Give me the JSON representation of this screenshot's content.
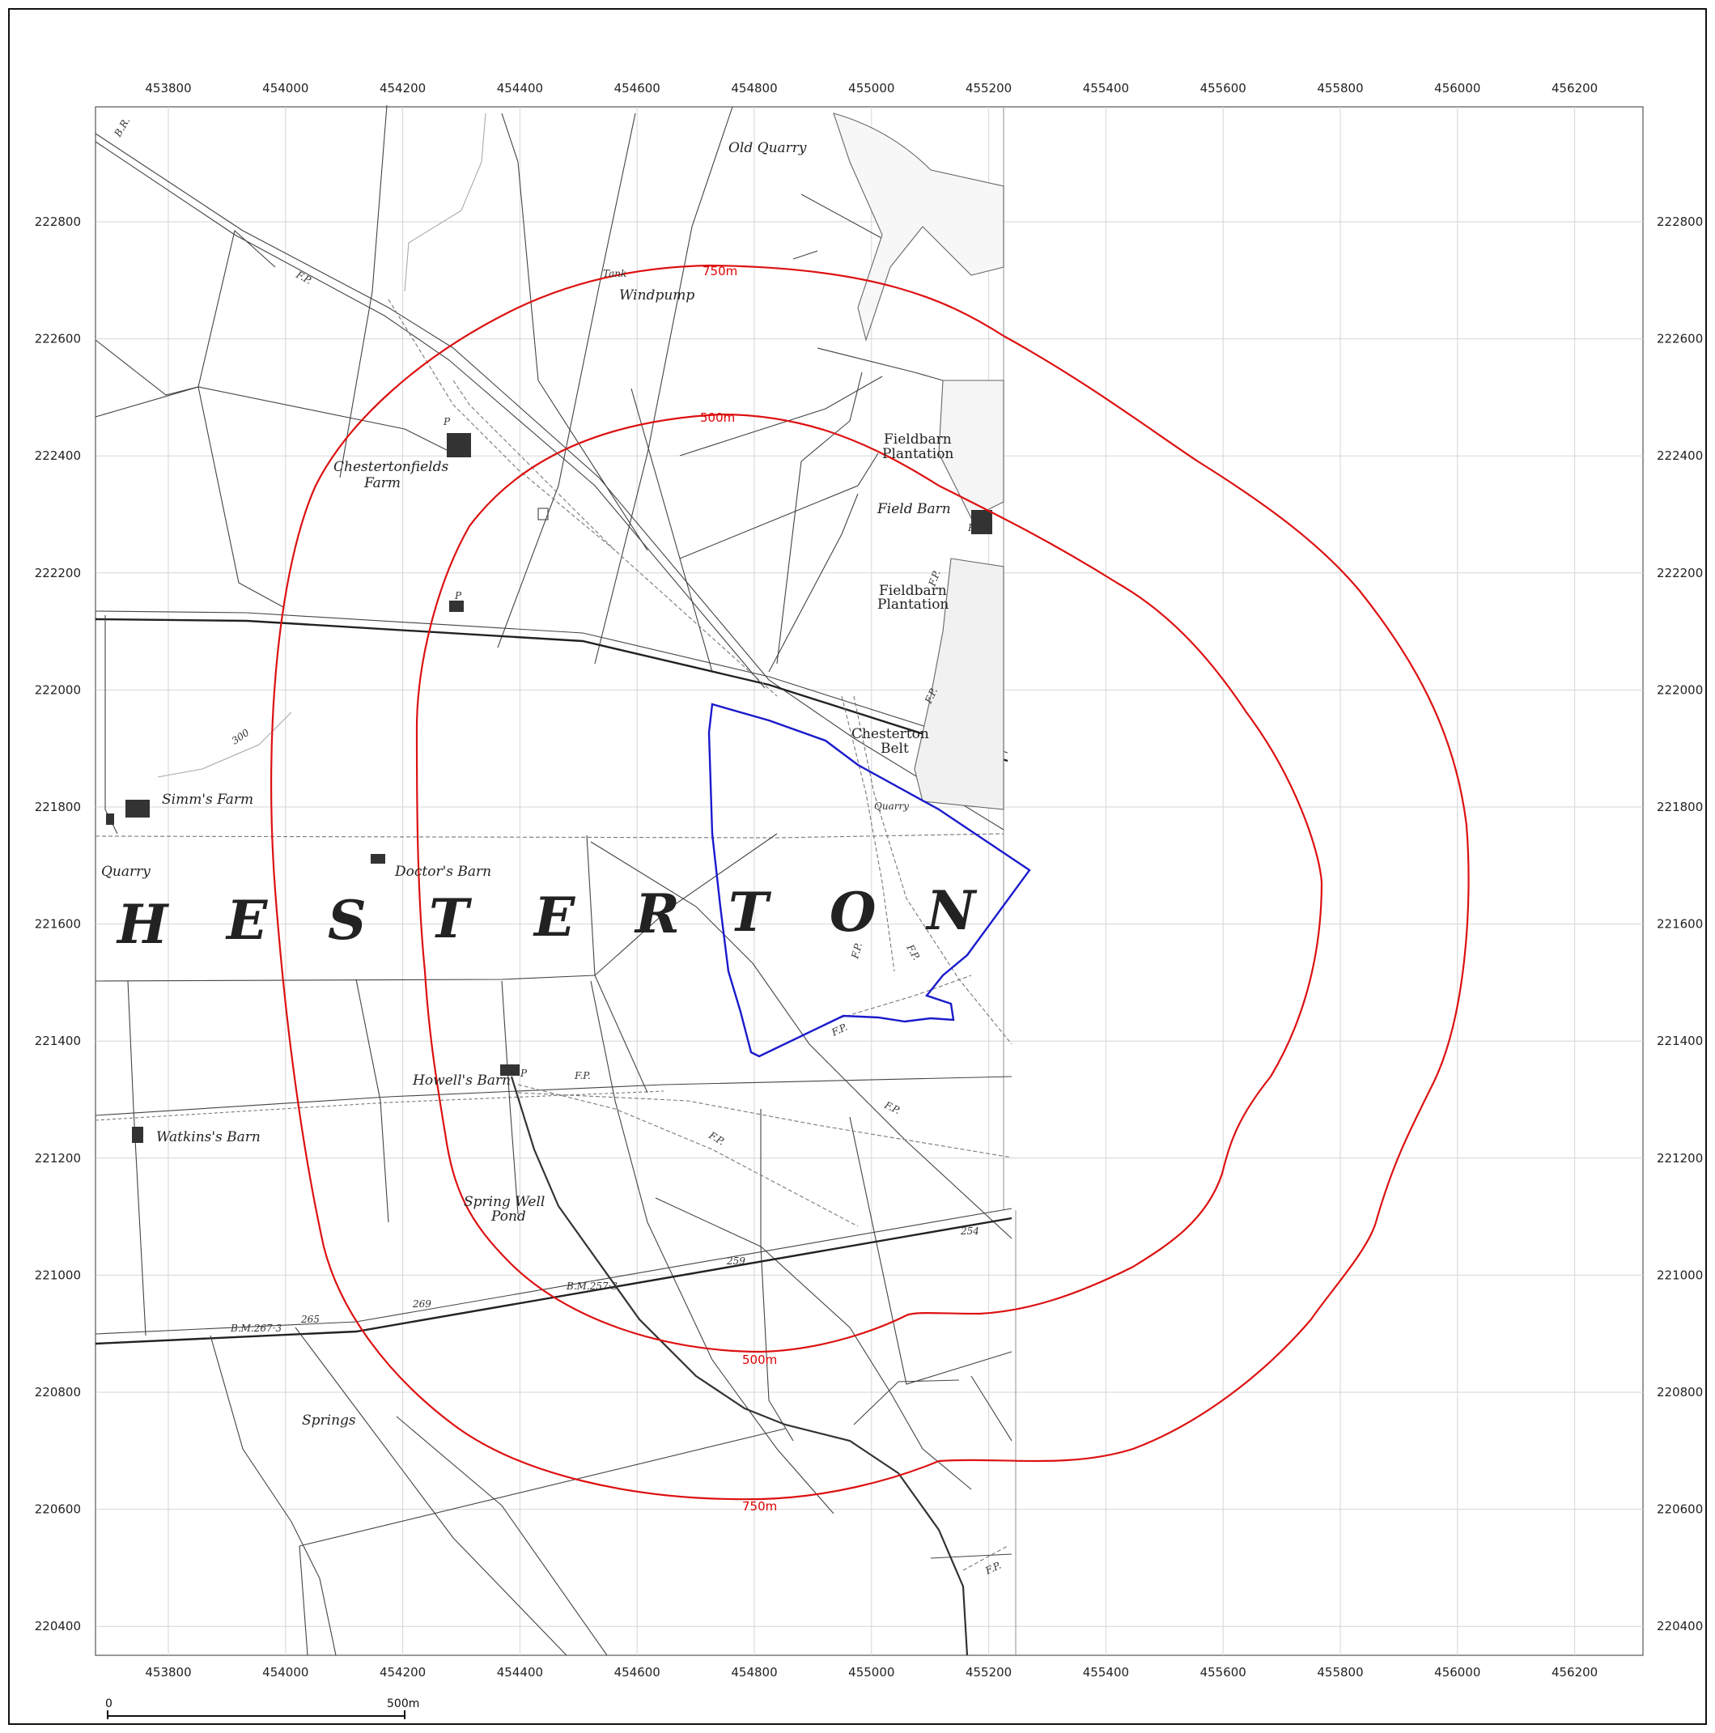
{
  "map": {
    "x_ticks": [
      "453800",
      "454000",
      "454200",
      "454400",
      "454600",
      "454800",
      "455000",
      "455200",
      "455400",
      "455600",
      "455800",
      "456000",
      "456200"
    ],
    "y_ticks": [
      "222800",
      "222600",
      "222400",
      "222200",
      "222000",
      "221800",
      "221600",
      "221400",
      "221200",
      "221000",
      "220800",
      "220600",
      "220400"
    ],
    "rings": [
      {
        "label": "750m",
        "color": "#dd1111"
      },
      {
        "label": "500m",
        "color": "#dd1111"
      }
    ],
    "site_boundary_color": "#1a1acc",
    "district_name": [
      "H",
      "E",
      "S",
      "T",
      "E",
      "R",
      "T",
      "O",
      "N"
    ],
    "places": {
      "old_quarry": "Old Quarry",
      "tank": "Tank",
      "windpump": "Windpump",
      "chestertonfields": "Chestertonfields",
      "farm": "Farm",
      "fieldbarn_1": "Fieldbarn",
      "plantation_1": "Plantation",
      "field_barn": "Field Barn",
      "fieldbarn_2": "Fieldbarn",
      "plantation_2": "Plantation",
      "chesterton": "Chesterton",
      "belt": "Belt",
      "quarry_small": "Quarry",
      "simms_farm": "Simm's Farm",
      "quarry": "Quarry",
      "doctors_barn": "Doctor's Barn",
      "howells_barn": "Howell's Barn",
      "watkins_barn": "Watkins's Barn",
      "spring_well": "Spring Well",
      "pond": "Pond",
      "springs": "Springs",
      "fp": "F.P.",
      "br": "B.R.",
      "p": "P",
      "bm_1": "B.M.257·3",
      "bm_2": "B.M.267·3",
      "spot_259": "259",
      "spot_254": "254",
      "spot_269": "269",
      "spot_265": "265",
      "contour_300": "300"
    },
    "scale_bar": {
      "start": "0",
      "end": "500m"
    }
  }
}
